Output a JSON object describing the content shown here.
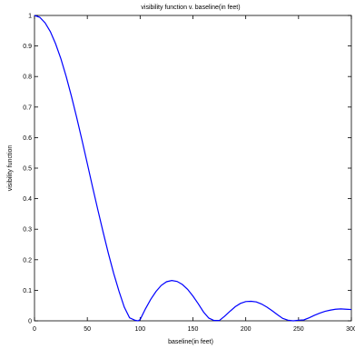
{
  "chart_data": {
    "type": "line",
    "title": "visibility function v. baseline(in feet)",
    "xlabel": "baseline(in feet)",
    "ylabel": "visibility function",
    "xlim": [
      0,
      300
    ],
    "ylim": [
      0,
      1
    ],
    "xticks": [
      "0",
      "50",
      "100",
      "150",
      "200",
      "250",
      "300"
    ],
    "yticks": [
      "0",
      "0.1",
      "0.2",
      "0.3",
      "0.4",
      "0.5",
      "0.6",
      "0.7",
      "0.8",
      "0.9",
      "1"
    ],
    "grid": false,
    "colors": {
      "line": "#0000ff",
      "axes": "#000000"
    },
    "series": [
      {
        "x": [
          0,
          5,
          10,
          15,
          20,
          25,
          30,
          35,
          40,
          45,
          50,
          55,
          60,
          65,
          70,
          75,
          80,
          85,
          90,
          95,
          98,
          100,
          105,
          110,
          115,
          120,
          125,
          130,
          135,
          140,
          145,
          150,
          155,
          160,
          165,
          170,
          175,
          180,
          185,
          190,
          195,
          200,
          205,
          210,
          215,
          220,
          225,
          230,
          235,
          240,
          245,
          250,
          255,
          260,
          265,
          270,
          275,
          280,
          285,
          290,
          295,
          300
        ],
        "y": [
          1.0,
          0.994,
          0.976,
          0.947,
          0.907,
          0.858,
          0.8,
          0.735,
          0.665,
          0.591,
          0.515,
          0.438,
          0.363,
          0.29,
          0.22,
          0.155,
          0.097,
          0.045,
          0.01,
          0.002,
          0.0,
          0.004,
          0.039,
          0.07,
          0.096,
          0.116,
          0.128,
          0.132,
          0.129,
          0.119,
          0.103,
          0.081,
          0.056,
          0.029,
          0.009,
          0.001,
          0.001,
          0.015,
          0.031,
          0.046,
          0.057,
          0.063,
          0.064,
          0.062,
          0.055,
          0.045,
          0.033,
          0.02,
          0.008,
          0.002,
          0.0,
          0.002,
          0.003,
          0.01,
          0.018,
          0.025,
          0.031,
          0.035,
          0.038,
          0.039,
          0.038,
          0.037
        ]
      }
    ]
  }
}
